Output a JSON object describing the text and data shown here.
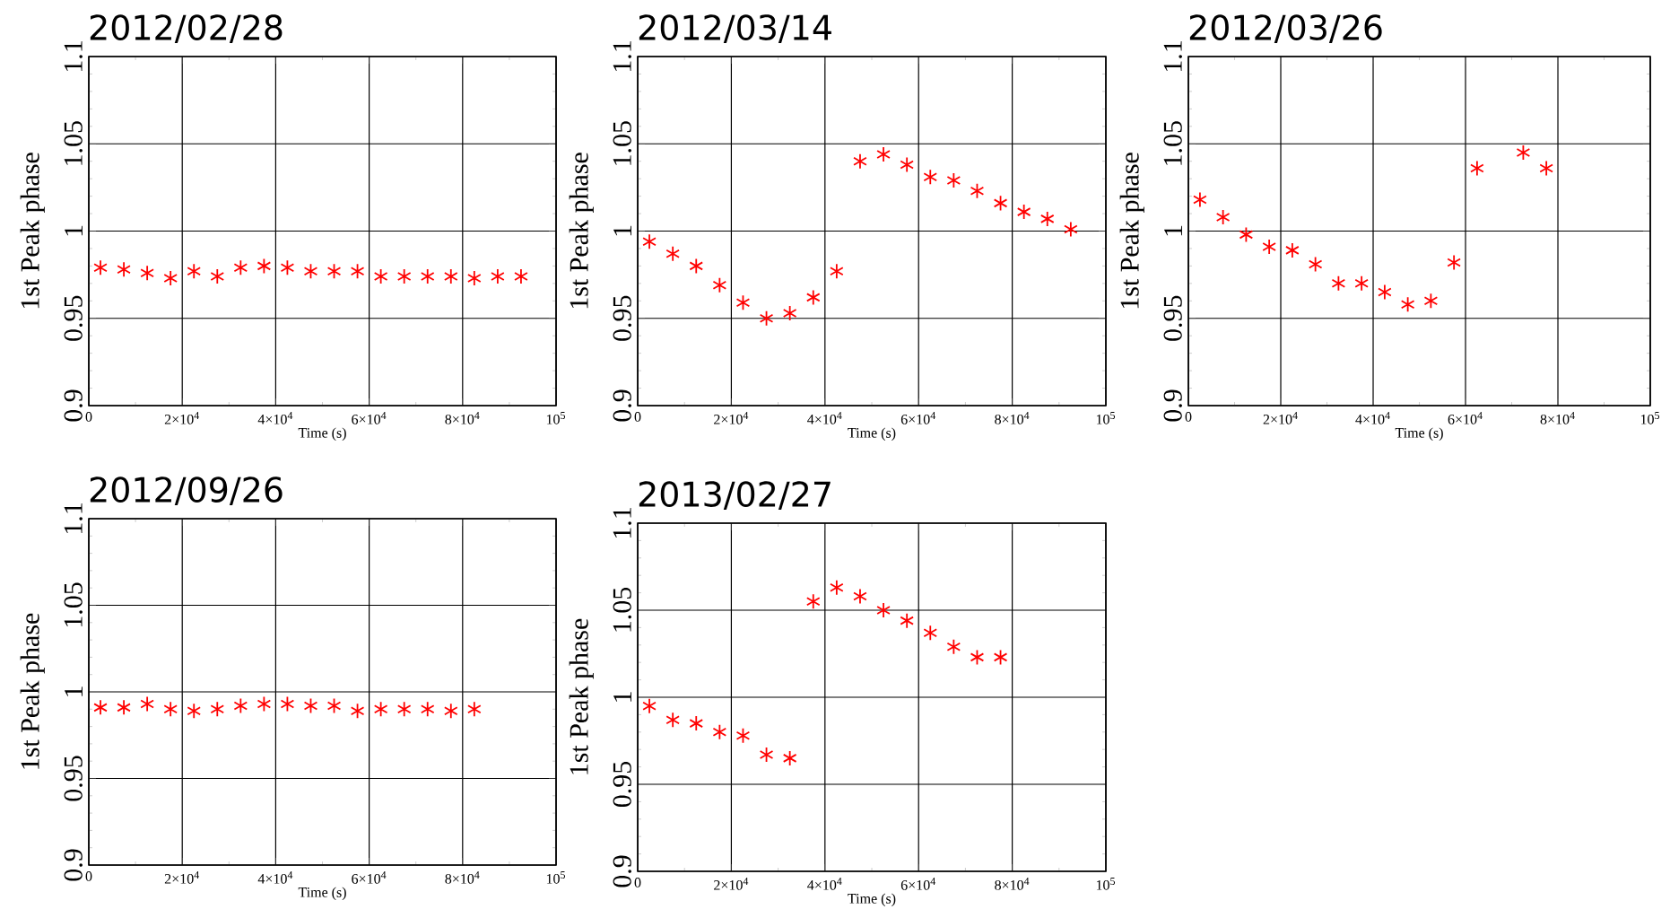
{
  "chart_data": [
    {
      "type": "scatter",
      "title": "2012/02/28",
      "xlabel": "Time (s)",
      "ylabel": "1st Peak phase",
      "xlim": [
        0,
        100000
      ],
      "ylim": [
        0.9,
        1.1
      ],
      "xticks": [
        0,
        {
          "value": 20000,
          "label": "2×10$^{4}$"
        },
        {
          "value": 40000,
          "label": "4×10$^{4}$"
        },
        {
          "value": 60000,
          "label": "6×10$^{4}$"
        },
        {
          "value": 80000,
          "label": "8×10$^{4}$"
        },
        {
          "value": 100000,
          "label": "10$^{5}$"
        }
      ],
      "yticks": [
        0.9,
        0.95,
        1,
        1.05,
        1.1
      ],
      "grid": true,
      "marker": "cross",
      "series": [
        {
          "color": "#ff0000",
          "x": [
            2500,
            7500,
            12500,
            17500,
            22500,
            27500,
            32500,
            37500,
            42500,
            47500,
            52500,
            57500,
            62500,
            67500,
            72500,
            77500,
            82500,
            87500,
            92500
          ],
          "values": [
            0.979,
            0.978,
            0.976,
            0.973,
            0.977,
            0.974,
            0.979,
            0.98,
            0.979,
            0.977,
            0.977,
            0.977,
            0.974,
            0.974,
            0.974,
            0.974,
            0.973,
            0.974,
            0.974
          ]
        }
      ]
    },
    {
      "type": "scatter",
      "title": "2012/03/14",
      "xlabel": "Time (s)",
      "ylabel": "1st Peak phase",
      "xlim": [
        0,
        100000
      ],
      "ylim": [
        0.9,
        1.1
      ],
      "xticks": [
        0,
        {
          "value": 20000,
          "label": "2×10$^{4}$"
        },
        {
          "value": 40000,
          "label": "4×10$^{4}$"
        },
        {
          "value": 60000,
          "label": "6×10$^{4}$"
        },
        {
          "value": 80000,
          "label": "8×10$^{4}$"
        },
        {
          "value": 100000,
          "label": "10$^{5}$"
        }
      ],
      "yticks": [
        0.9,
        0.95,
        1,
        1.05,
        1.1
      ],
      "grid": true,
      "marker": "cross",
      "series": [
        {
          "color": "#ff0000",
          "x": [
            2500,
            7500,
            12500,
            17500,
            22500,
            27500,
            32500,
            37500,
            42500,
            47500,
            52500,
            57500,
            62500,
            67500,
            72500,
            77500,
            82500,
            87500,
            92500
          ],
          "values": [
            0.994,
            0.987,
            0.98,
            0.969,
            0.959,
            0.95,
            0.953,
            0.962,
            0.977,
            1.04,
            1.044,
            1.038,
            1.031,
            1.029,
            1.023,
            1.016,
            1.011,
            1.007,
            1.001
          ]
        }
      ]
    },
    {
      "type": "scatter",
      "title": "2012/03/26",
      "xlabel": "Time (s)",
      "ylabel": "1st Peak phase",
      "xlim": [
        0,
        100000
      ],
      "ylim": [
        0.9,
        1.1
      ],
      "xticks": [
        0,
        {
          "value": 20000,
          "label": "2×10$^{4}$"
        },
        {
          "value": 40000,
          "label": "4×10$^{4}$"
        },
        {
          "value": 60000,
          "label": "6×10$^{4}$"
        },
        {
          "value": 80000,
          "label": "8×10$^{4}$"
        },
        {
          "value": 100000,
          "label": "10$^{5}$"
        }
      ],
      "yticks": [
        0.9,
        0.95,
        1,
        1.05,
        1.1
      ],
      "grid": true,
      "marker": "cross",
      "series": [
        {
          "color": "#ff0000",
          "x": [
            2500,
            7500,
            12500,
            17500,
            22500,
            27500,
            32500,
            37500,
            42500,
            47500,
            52500,
            57500,
            62500,
            72500,
            77500
          ],
          "values": [
            1.018,
            1.008,
            0.998,
            0.991,
            0.989,
            0.981,
            0.97,
            0.97,
            0.965,
            0.958,
            0.96,
            0.982,
            1.036,
            1.045,
            1.036
          ]
        }
      ]
    },
    {
      "type": "scatter",
      "title": "2012/09/26",
      "xlabel": "Time (s)",
      "ylabel": "1st Peak phase",
      "xlim": [
        0,
        100000
      ],
      "ylim": [
        0.9,
        1.1
      ],
      "xticks": [
        0,
        {
          "value": 20000,
          "label": "2×10$^{4}$"
        },
        {
          "value": 40000,
          "label": "4×10$^{4}$"
        },
        {
          "value": 60000,
          "label": "6×10$^{4}$"
        },
        {
          "value": 80000,
          "label": "8×10$^{4}$"
        },
        {
          "value": 100000,
          "label": "10$^{5}$"
        }
      ],
      "yticks": [
        0.9,
        0.95,
        1,
        1.05,
        1.1
      ],
      "grid": true,
      "marker": "cross",
      "series": [
        {
          "color": "#ff0000",
          "x": [
            2500,
            7500,
            12500,
            17500,
            22500,
            27500,
            32500,
            37500,
            42500,
            47500,
            52500,
            57500,
            62500,
            67500,
            72500,
            77500,
            82500
          ],
          "values": [
            0.991,
            0.991,
            0.993,
            0.99,
            0.989,
            0.99,
            0.992,
            0.993,
            0.993,
            0.992,
            0.992,
            0.989,
            0.99,
            0.99,
            0.99,
            0.989,
            0.99
          ]
        }
      ]
    },
    {
      "type": "scatter",
      "title": "2013/02/27",
      "xlabel": "Time (s)",
      "ylabel": "1st Peak phase",
      "xlim": [
        0,
        100000
      ],
      "ylim": [
        0.9,
        1.1
      ],
      "xticks": [
        0,
        {
          "value": 20000,
          "label": "2×10$^{4}$"
        },
        {
          "value": 40000,
          "label": "4×10$^{4}$"
        },
        {
          "value": 60000,
          "label": "6×10$^{4}$"
        },
        {
          "value": 80000,
          "label": "8×10$^{4}$"
        },
        {
          "value": 100000,
          "label": "10$^{5}$"
        }
      ],
      "yticks": [
        0.9,
        0.95,
        1,
        1.05,
        1.1
      ],
      "grid": true,
      "marker": "cross",
      "series": [
        {
          "color": "#ff0000",
          "x": [
            2500,
            7500,
            12500,
            17500,
            22500,
            27500,
            32500,
            37500,
            42500,
            47500,
            52500,
            57500,
            62500,
            67500,
            72500,
            77500
          ],
          "values": [
            0.995,
            0.987,
            0.985,
            0.98,
            0.978,
            0.967,
            0.965,
            1.055,
            1.063,
            1.058,
            1.05,
            1.044,
            1.037,
            1.029,
            1.023,
            1.023
          ]
        }
      ]
    }
  ]
}
